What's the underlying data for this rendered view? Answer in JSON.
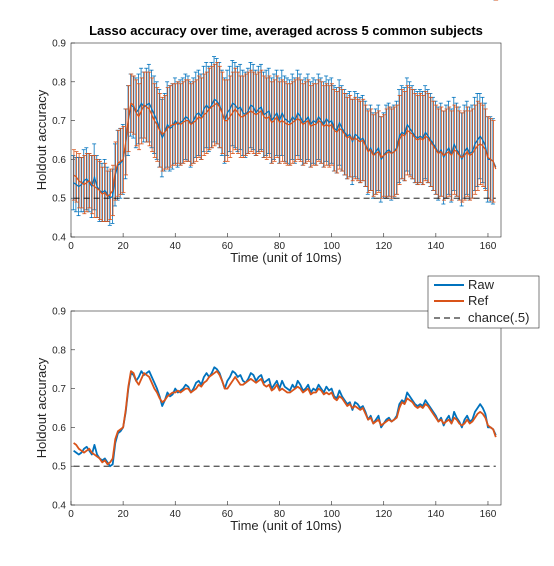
{
  "title": "Lasso accuracy over time, averaged across 5 common subjects",
  "colors": {
    "raw": "#0072BD",
    "ref": "#D95319",
    "chance": "#000000",
    "axis": "#262626"
  },
  "legend": {
    "entries": [
      {
        "label": "Raw",
        "color": "#0072BD",
        "style": "solid"
      },
      {
        "label": "Ref",
        "color": "#D95319",
        "style": "solid"
      },
      {
        "label": "chance(.5)",
        "color": "#000000",
        "style": "dashed"
      }
    ]
  },
  "chart_data": [
    {
      "type": "line",
      "title": "Lasso accuracy over time, averaged across 5 common subjects",
      "xlabel": "Time (unit of 10ms)",
      "ylabel": "Holdout accuracy",
      "xlim": [
        0,
        165
      ],
      "ylim": [
        0.4,
        0.9
      ],
      "xticks": [
        "0",
        "20",
        "40",
        "60",
        "80",
        "100",
        "120",
        "140",
        "160"
      ],
      "yticks": [
        "0.4",
        "0.5",
        "0.6",
        "0.7",
        "0.8",
        "0.9"
      ],
      "error_bars": true,
      "grid": false,
      "series": [
        {
          "name": "Raw",
          "color": "#0072BD",
          "line_style": "solid"
        },
        {
          "name": "Ref",
          "color": "#D95319",
          "line_style": "solid"
        },
        {
          "name": "chance(.5)",
          "color": "#000000",
          "line_style": "dashed",
          "constant": 0.5
        }
      ]
    },
    {
      "type": "line",
      "title": "",
      "xlabel": "Time (unit of 10ms)",
      "ylabel": "Holdout accuracy",
      "xlim": [
        0,
        165
      ],
      "ylim": [
        0.4,
        0.9
      ],
      "xticks": [
        "0",
        "20",
        "40",
        "60",
        "80",
        "100",
        "120",
        "140",
        "160"
      ],
      "yticks": [
        "0.4",
        "0.5",
        "0.6",
        "0.7",
        "0.8",
        "0.9"
      ],
      "error_bars": false,
      "grid": false,
      "legend_position": "top-right, outside",
      "series": [
        {
          "name": "Raw",
          "color": "#0072BD",
          "line_style": "solid"
        },
        {
          "name": "Ref",
          "color": "#D95319",
          "line_style": "solid"
        },
        {
          "name": "chance(.5)",
          "color": "#000000",
          "line_style": "dashed",
          "constant": 0.5
        }
      ]
    }
  ],
  "series_values": {
    "x_start": 1,
    "x_step": 1,
    "raw": [
      0.54,
      0.535,
      0.53,
      0.535,
      0.545,
      0.55,
      0.54,
      0.53,
      0.555,
      0.53,
      0.52,
      0.515,
      0.52,
      0.51,
      0.5,
      0.505,
      0.56,
      0.585,
      0.59,
      0.6,
      0.64,
      0.7,
      0.74,
      0.735,
      0.72,
      0.73,
      0.745,
      0.735,
      0.74,
      0.745,
      0.73,
      0.715,
      0.7,
      0.68,
      0.655,
      0.67,
      0.69,
      0.68,
      0.685,
      0.7,
      0.69,
      0.695,
      0.7,
      0.71,
      0.705,
      0.69,
      0.7,
      0.715,
      0.72,
      0.71,
      0.73,
      0.74,
      0.73,
      0.74,
      0.755,
      0.75,
      0.74,
      0.72,
      0.7,
      0.72,
      0.73,
      0.745,
      0.74,
      0.73,
      0.735,
      0.72,
      0.715,
      0.725,
      0.74,
      0.735,
      0.72,
      0.73,
      0.735,
      0.715,
      0.72,
      0.725,
      0.7,
      0.71,
      0.72,
      0.7,
      0.72,
      0.705,
      0.7,
      0.695,
      0.71,
      0.7,
      0.72,
      0.71,
      0.695,
      0.7,
      0.71,
      0.69,
      0.7,
      0.695,
      0.71,
      0.7,
      0.69,
      0.705,
      0.695,
      0.7,
      0.68,
      0.675,
      0.695,
      0.68,
      0.67,
      0.66,
      0.665,
      0.645,
      0.665,
      0.66,
      0.65,
      0.655,
      0.64,
      0.62,
      0.63,
      0.61,
      0.62,
      0.63,
      0.6,
      0.61,
      0.62,
      0.625,
      0.615,
      0.62,
      0.63,
      0.66,
      0.67,
      0.665,
      0.69,
      0.68,
      0.67,
      0.66,
      0.655,
      0.66,
      0.655,
      0.67,
      0.66,
      0.65,
      0.64,
      0.63,
      0.615,
      0.625,
      0.605,
      0.62,
      0.63,
      0.61,
      0.64,
      0.625,
      0.615,
      0.6,
      0.62,
      0.63,
      0.615,
      0.62,
      0.64,
      0.65,
      0.66,
      0.65,
      0.635,
      0.6,
      0.6,
      0.595,
      0.58
    ],
    "ref": [
      0.56,
      0.555,
      0.545,
      0.54,
      0.535,
      0.54,
      0.545,
      0.535,
      0.53,
      0.525,
      0.52,
      0.51,
      0.515,
      0.505,
      0.51,
      0.52,
      0.57,
      0.59,
      0.595,
      0.6,
      0.645,
      0.705,
      0.745,
      0.74,
      0.72,
      0.71,
      0.725,
      0.74,
      0.735,
      0.73,
      0.715,
      0.7,
      0.69,
      0.675,
      0.665,
      0.67,
      0.68,
      0.685,
      0.69,
      0.69,
      0.695,
      0.69,
      0.695,
      0.7,
      0.7,
      0.69,
      0.695,
      0.7,
      0.71,
      0.705,
      0.715,
      0.72,
      0.73,
      0.735,
      0.74,
      0.745,
      0.735,
      0.72,
      0.7,
      0.7,
      0.71,
      0.72,
      0.73,
      0.72,
      0.71,
      0.71,
      0.715,
      0.72,
      0.725,
      0.72,
      0.715,
      0.72,
      0.725,
      0.71,
      0.705,
      0.71,
      0.695,
      0.7,
      0.71,
      0.695,
      0.7,
      0.695,
      0.69,
      0.69,
      0.695,
      0.7,
      0.705,
      0.7,
      0.69,
      0.695,
      0.7,
      0.685,
      0.69,
      0.69,
      0.7,
      0.695,
      0.685,
      0.69,
      0.685,
      0.69,
      0.675,
      0.67,
      0.68,
      0.675,
      0.665,
      0.655,
      0.66,
      0.65,
      0.655,
      0.65,
      0.645,
      0.65,
      0.635,
      0.62,
      0.625,
      0.61,
      0.615,
      0.62,
      0.605,
      0.61,
      0.615,
      0.62,
      0.615,
      0.62,
      0.625,
      0.65,
      0.665,
      0.66,
      0.675,
      0.67,
      0.665,
      0.655,
      0.65,
      0.655,
      0.65,
      0.66,
      0.655,
      0.645,
      0.635,
      0.625,
      0.615,
      0.62,
      0.61,
      0.615,
      0.62,
      0.61,
      0.625,
      0.62,
      0.61,
      0.605,
      0.61,
      0.62,
      0.61,
      0.615,
      0.625,
      0.635,
      0.64,
      0.635,
      0.625,
      0.605,
      0.6,
      0.595,
      0.575
    ],
    "raw_err": [
      0.07,
      0.07,
      0.075,
      0.07,
      0.08,
      0.08,
      0.075,
      0.08,
      0.085,
      0.08,
      0.08,
      0.075,
      0.08,
      0.07,
      0.07,
      0.07,
      0.08,
      0.09,
      0.09,
      0.09,
      0.09,
      0.09,
      0.08,
      0.08,
      0.09,
      0.09,
      0.09,
      0.09,
      0.095,
      0.1,
      0.1,
      0.1,
      0.1,
      0.1,
      0.1,
      0.1,
      0.11,
      0.11,
      0.11,
      0.11,
      0.11,
      0.11,
      0.11,
      0.11,
      0.11,
      0.11,
      0.11,
      0.11,
      0.11,
      0.11,
      0.11,
      0.11,
      0.11,
      0.11,
      0.11,
      0.11,
      0.11,
      0.11,
      0.11,
      0.11,
      0.11,
      0.11,
      0.11,
      0.11,
      0.11,
      0.11,
      0.11,
      0.11,
      0.11,
      0.11,
      0.11,
      0.11,
      0.11,
      0.11,
      0.11,
      0.11,
      0.11,
      0.11,
      0.11,
      0.11,
      0.11,
      0.11,
      0.11,
      0.11,
      0.11,
      0.11,
      0.11,
      0.11,
      0.11,
      0.11,
      0.11,
      0.11,
      0.11,
      0.11,
      0.11,
      0.11,
      0.11,
      0.11,
      0.11,
      0.11,
      0.11,
      0.11,
      0.11,
      0.11,
      0.11,
      0.11,
      0.11,
      0.11,
      0.11,
      0.11,
      0.11,
      0.11,
      0.11,
      0.11,
      0.11,
      0.11,
      0.11,
      0.11,
      0.11,
      0.11,
      0.12,
      0.12,
      0.12,
      0.12,
      0.12,
      0.12,
      0.12,
      0.12,
      0.12,
      0.12,
      0.12,
      0.12,
      0.12,
      0.12,
      0.12,
      0.12,
      0.12,
      0.12,
      0.12,
      0.12,
      0.12,
      0.12,
      0.12,
      0.12,
      0.12,
      0.12,
      0.12,
      0.12,
      0.12,
      0.12,
      0.12,
      0.12,
      0.12,
      0.12,
      0.12,
      0.12,
      0.11,
      0.11,
      0.11,
      0.11,
      0.11,
      0.11
    ],
    "ref_err": [
      0.065,
      0.065,
      0.07,
      0.065,
      0.075,
      0.075,
      0.07,
      0.075,
      0.08,
      0.075,
      0.075,
      0.07,
      0.075,
      0.065,
      0.065,
      0.065,
      0.075,
      0.085,
      0.085,
      0.085,
      0.085,
      0.085,
      0.075,
      0.075,
      0.085,
      0.085,
      0.085,
      0.085,
      0.09,
      0.095,
      0.095,
      0.095,
      0.095,
      0.095,
      0.095,
      0.095,
      0.105,
      0.105,
      0.105,
      0.105,
      0.105,
      0.105,
      0.105,
      0.105,
      0.105,
      0.105,
      0.105,
      0.105,
      0.105,
      0.105,
      0.105,
      0.105,
      0.105,
      0.105,
      0.105,
      0.105,
      0.105,
      0.105,
      0.105,
      0.105,
      0.105,
      0.105,
      0.105,
      0.105,
      0.105,
      0.105,
      0.105,
      0.105,
      0.105,
      0.105,
      0.105,
      0.105,
      0.105,
      0.105,
      0.105,
      0.105,
      0.105,
      0.105,
      0.105,
      0.105,
      0.105,
      0.105,
      0.105,
      0.105,
      0.105,
      0.105,
      0.105,
      0.105,
      0.105,
      0.105,
      0.105,
      0.105,
      0.105,
      0.105,
      0.105,
      0.105,
      0.105,
      0.105,
      0.105,
      0.105,
      0.105,
      0.105,
      0.105,
      0.105,
      0.105,
      0.105,
      0.105,
      0.105,
      0.105,
      0.105,
      0.105,
      0.105,
      0.105,
      0.105,
      0.105,
      0.105,
      0.105,
      0.105,
      0.105,
      0.105,
      0.115,
      0.115,
      0.115,
      0.115,
      0.115,
      0.115,
      0.115,
      0.115,
      0.115,
      0.115,
      0.115,
      0.115,
      0.115,
      0.115,
      0.115,
      0.115,
      0.115,
      0.115,
      0.115,
      0.115,
      0.115,
      0.115,
      0.115,
      0.115,
      0.115,
      0.115,
      0.115,
      0.115,
      0.115,
      0.115,
      0.115,
      0.115,
      0.115,
      0.115,
      0.115,
      0.115,
      0.105,
      0.105,
      0.105,
      0.105,
      0.105,
      0.105
    ]
  }
}
